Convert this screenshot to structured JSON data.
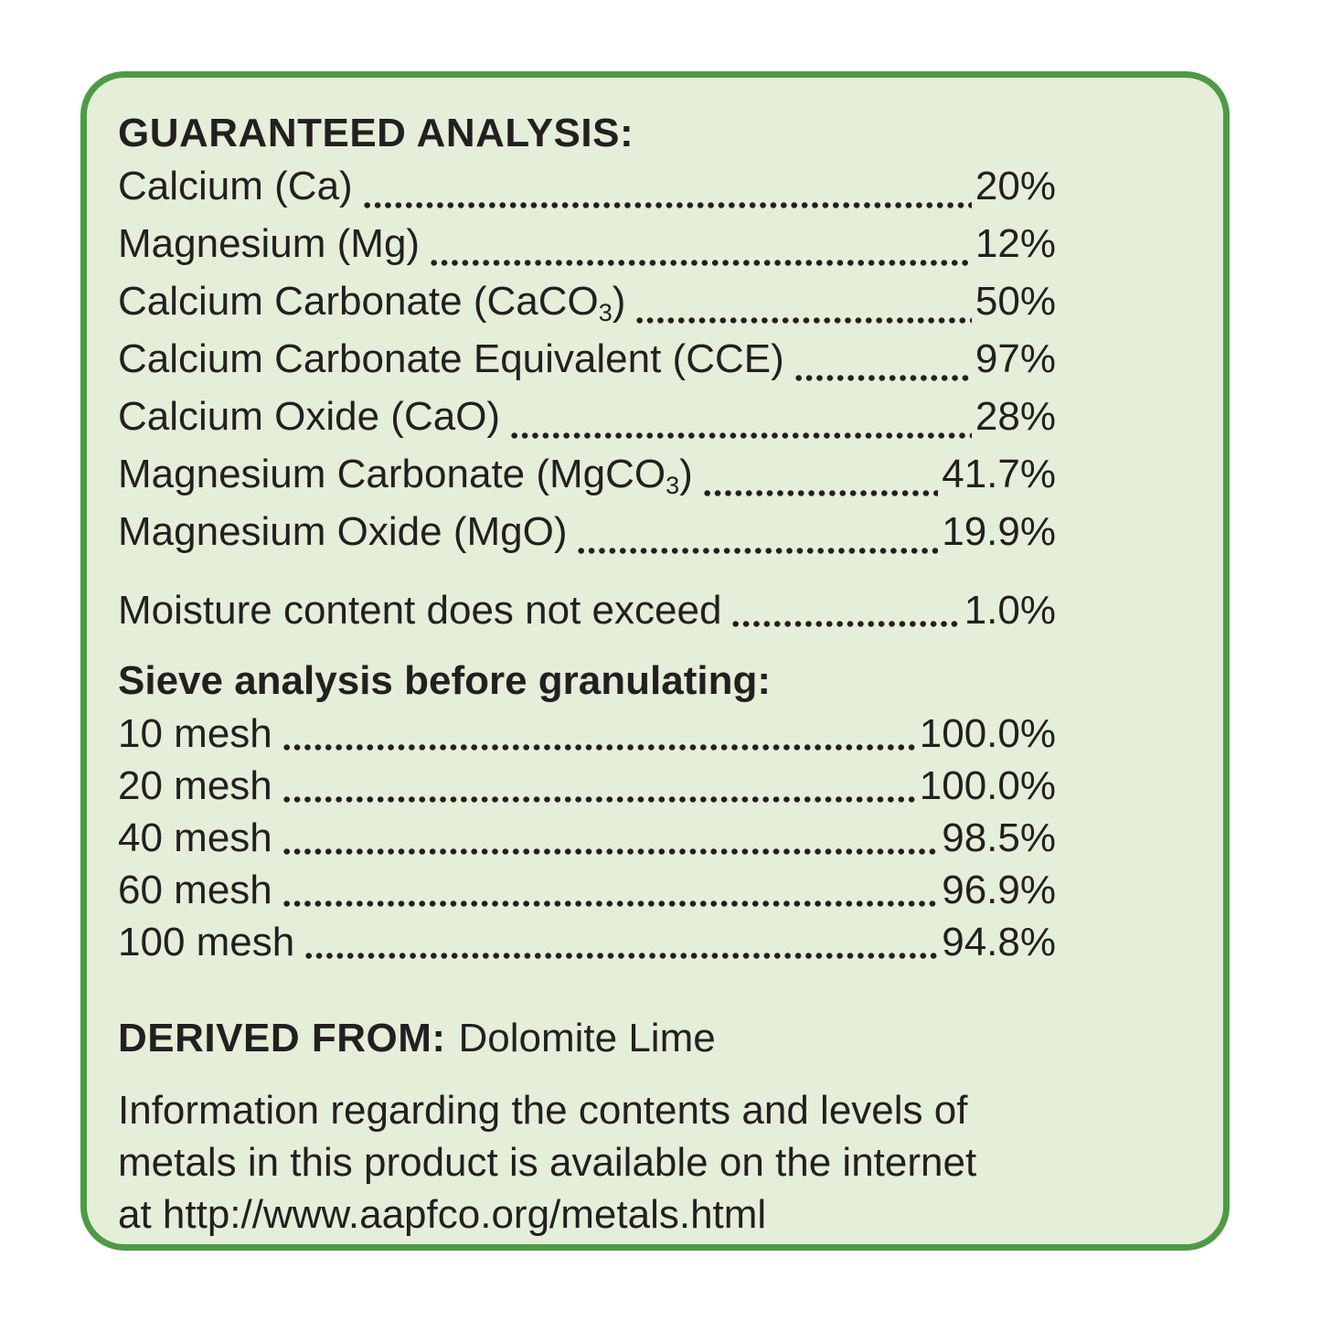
{
  "panel": {
    "background_color": "#e4eed9",
    "border_color": "#4d9b44",
    "text_color": "#231f20"
  },
  "guaranteed_analysis": {
    "title": "GUARANTEED ANALYSIS:",
    "rows": [
      {
        "label": "Calcium (Ca)",
        "sub": "",
        "label_end": "",
        "value": "20%"
      },
      {
        "label": "Magnesium (Mg)",
        "sub": "",
        "label_end": "",
        "value": "12%"
      },
      {
        "label": "Calcium Carbonate (CaCO",
        "sub": "3",
        "label_end": ")",
        "value": "50%"
      },
      {
        "label": "Calcium Carbonate Equivalent (CCE)",
        "sub": "",
        "label_end": "",
        "value": "97%"
      },
      {
        "label": "Calcium Oxide (CaO)",
        "sub": "",
        "label_end": "",
        "value": "28%"
      },
      {
        "label": "Magnesium Carbonate (MgCO",
        "sub": "3",
        "label_end": ")",
        "value": "41.7%"
      },
      {
        "label": "Magnesium Oxide (MgO)",
        "sub": "",
        "label_end": "",
        "value": "19.9%"
      }
    ],
    "moisture": {
      "label": "Moisture content does not exceed",
      "value": "1.0%"
    }
  },
  "sieve_analysis": {
    "heading": "Sieve analysis before granulating:",
    "rows": [
      {
        "label": "10 mesh",
        "value": "100.0%"
      },
      {
        "label": "20 mesh",
        "value": "100.0%"
      },
      {
        "label": "40 mesh",
        "value": "98.5%"
      },
      {
        "label": "60 mesh",
        "value": "96.9%"
      },
      {
        "label": "100 mesh",
        "value": "94.8%"
      }
    ]
  },
  "derived_from": {
    "label": "DERIVED FROM:",
    "value": "Dolomite Lime"
  },
  "metals_note": {
    "lines": [
      "Information regarding the contents and levels of",
      "metals in this product is available on the internet",
      "at http://www.aapfco.org/metals.html"
    ]
  }
}
